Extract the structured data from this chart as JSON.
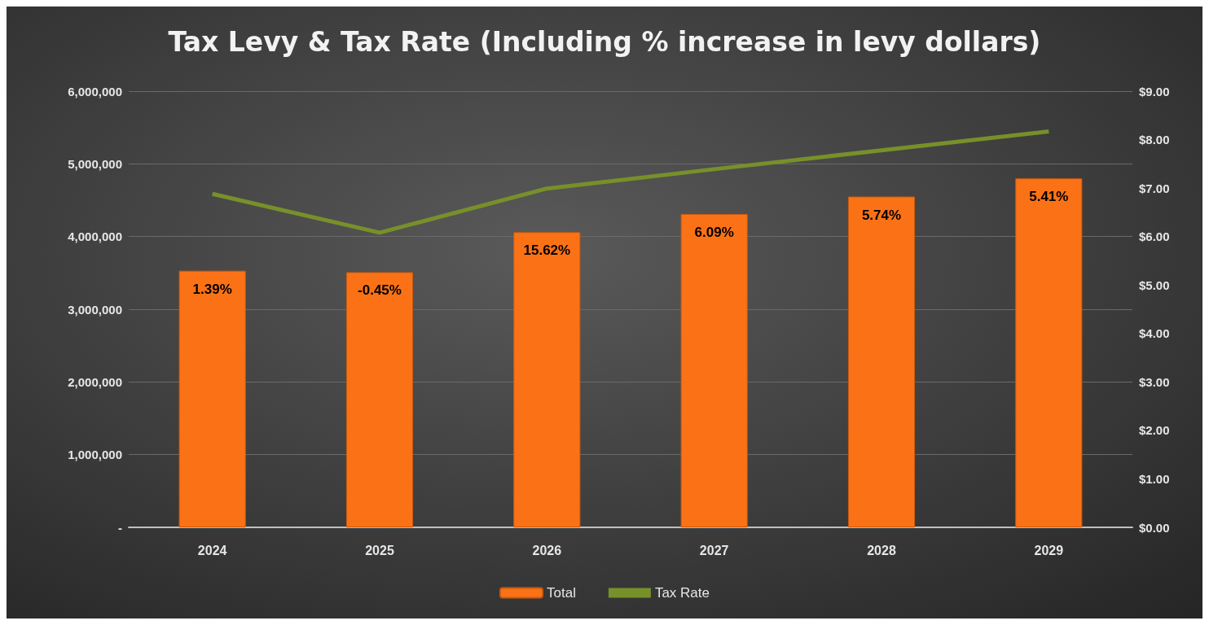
{
  "chart_data": {
    "type": "bar",
    "title": "Tax Levy & Tax Rate (Including % increase in levy dollars)",
    "categories": [
      "2024",
      "2025",
      "2026",
      "2027",
      "2028",
      "2029"
    ],
    "series": [
      {
        "name": "Total",
        "color": "#fb7216",
        "values": [
          3530000,
          3510000,
          4060000,
          4310000,
          4550000,
          4800000
        ]
      },
      {
        "name": "Tax Rate",
        "type": "line",
        "axis": "y2",
        "color": "#77902a",
        "values": [
          6.88,
          6.08,
          6.99,
          7.39,
          7.78,
          8.17
        ]
      }
    ],
    "ylim": [
      0,
      6000000
    ],
    "yticks": [
      {
        "value": 0,
        "label": "-"
      },
      {
        "value": 1000000,
        "label": "1,000,000"
      },
      {
        "value": 2000000,
        "label": "2,000,000"
      },
      {
        "value": 3000000,
        "label": "3,000,000"
      },
      {
        "value": 4000000,
        "label": "4,000,000"
      },
      {
        "value": 5000000,
        "label": "5,000,000"
      },
      {
        "value": 6000000,
        "label": "6,000,000"
      }
    ],
    "y2lim": [
      0,
      9
    ],
    "y2ticks": [
      {
        "value": 0,
        "label": "$0.00"
      },
      {
        "value": 1,
        "label": "$1.00"
      },
      {
        "value": 2,
        "label": "$2.00"
      },
      {
        "value": 3,
        "label": "$3.00"
      },
      {
        "value": 4,
        "label": "$4.00"
      },
      {
        "value": 5,
        "label": "$5.00"
      },
      {
        "value": 6,
        "label": "$6.00"
      },
      {
        "value": 7,
        "label": "$7.00"
      },
      {
        "value": 8,
        "label": "$8.00"
      },
      {
        "value": 9,
        "label": "$9.00"
      }
    ],
    "annotations": [
      {
        "text": "1.39%",
        "x": "2024",
        "y": 3530000
      },
      {
        "text": "-0.45%",
        "x": "2025",
        "y": 3510000
      },
      {
        "text": "15.62%",
        "x": "2026",
        "y": 4060000
      },
      {
        "text": "6.09%",
        "x": "2027",
        "y": 4310000
      },
      {
        "text": "5.74%",
        "x": "2028",
        "y": 4550000
      },
      {
        "text": "5.41%",
        "x": "2029",
        "y": 4800000
      }
    ],
    "grid": "y",
    "legend": "bottom",
    "marker": "none",
    "line_style": "solid"
  }
}
